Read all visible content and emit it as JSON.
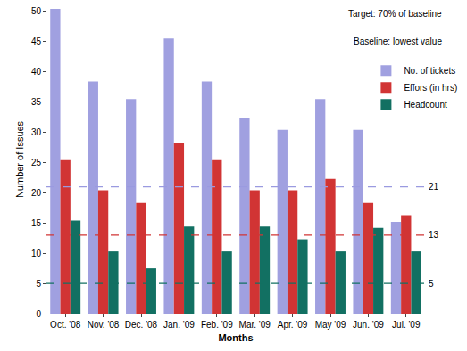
{
  "chart_data": {
    "type": "bar",
    "x_label": "Months",
    "y_label": "Number of Issues",
    "categories": [
      "Oct. '08",
      "Nov. '08",
      "Dec. '08",
      "Jan. '09",
      "Feb. '09",
      "Mar. '09",
      "Apr. '09",
      "May '09",
      "Jun. '09",
      "Jul. '09"
    ],
    "series": [
      {
        "name": "No. of tickets",
        "color": "#a0a0e0",
        "values": [
          50.4,
          38.4,
          35.5,
          45.5,
          38.4,
          32.3,
          30.4,
          35.5,
          30.4,
          15.2
        ]
      },
      {
        "name": "Effors (in hrs)",
        "color": "#d13434",
        "values": [
          25.4,
          20.4,
          18.3,
          28.3,
          25.4,
          20.4,
          20.4,
          22.3,
          18.3,
          16.3
        ]
      },
      {
        "name": "Headcount",
        "color": "#127062",
        "values": [
          15.4,
          10.3,
          7.5,
          14.4,
          10.3,
          14.4,
          12.3,
          10.3,
          14.2,
          10.3
        ]
      }
    ],
    "ylim": [
      0,
      51
    ],
    "yticks": [
      0,
      5,
      10,
      15,
      20,
      25,
      30,
      35,
      40,
      45,
      50
    ],
    "grid": false,
    "legend": "upper right",
    "annotations": [
      "Target: 70% of baseline",
      "Baseline: lowest value"
    ],
    "reference_lines": [
      {
        "value": 21,
        "color": "#9a9ae0",
        "line_style": "dash"
      },
      {
        "value": 13,
        "color": "#d13434",
        "line_style": "dash"
      },
      {
        "value": 5,
        "color": "#127062",
        "line_style": "dash"
      }
    ]
  }
}
